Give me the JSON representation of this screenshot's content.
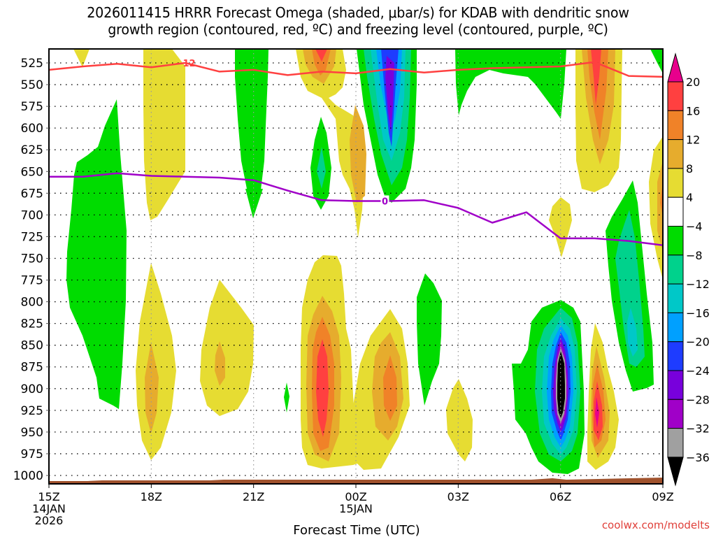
{
  "chart_data": {
    "type": "heatmap",
    "title_lines": [
      "2026011415 HRRR Forecast Omega (shaded, μbar/s) for KDAB with dendritic snow",
      "growth region (contoured, red, ºC) and freezing level (contoured, purple, ºC)"
    ],
    "xlabel": "Forecast Time (UTC)",
    "ylabel": "",
    "credit": "coolwx.com/modelts",
    "x_ticks": [
      {
        "hour": 0,
        "lines": [
          "15Z",
          "14JAN",
          "2026"
        ]
      },
      {
        "hour": 3,
        "lines": [
          "18Z"
        ]
      },
      {
        "hour": 6,
        "lines": [
          "21Z"
        ]
      },
      {
        "hour": 9,
        "lines": [
          "00Z",
          "15JAN"
        ]
      },
      {
        "hour": 12,
        "lines": [
          "03Z"
        ]
      },
      {
        "hour": 15,
        "lines": [
          "06Z"
        ]
      },
      {
        "hour": 18,
        "lines": [
          "09Z"
        ]
      }
    ],
    "xlim_hours": [
      0,
      18
    ],
    "y_ticks": [
      525,
      550,
      575,
      600,
      625,
      650,
      675,
      700,
      725,
      750,
      775,
      800,
      825,
      850,
      875,
      900,
      925,
      950,
      975,
      1000
    ],
    "ylim_hPa": [
      509,
      1012
    ],
    "grid": true,
    "colorbar": {
      "labels": [
        "20",
        "16",
        "12",
        "8",
        "4",
        "−4",
        "−8",
        "−12",
        "−16",
        "−20",
        "−24",
        "−28",
        "−32",
        "−36"
      ],
      "levels": [
        -36,
        -32,
        -28,
        -24,
        -20,
        -16,
        -12,
        -8,
        -4,
        4,
        8,
        12,
        16,
        20
      ],
      "colors": {
        "gt20": "#e8008c",
        "16_20": "#ff4040",
        "12_16": "#f08228",
        "8_12": "#e6ac2d",
        "4_8": "#e6dc32",
        "m4_4": "#ffffff",
        "m8_m4": "#00dc00",
        "m12_m8": "#00d28c",
        "m16_m12": "#00c8c8",
        "m20_m16": "#00a0ff",
        "m24_m20": "#1e3cff",
        "m28_m24": "#7800dc",
        "m32_m28": "#a000c8",
        "m36_m32": "#a0a0a0",
        "lt_m36": "#000000"
      },
      "placement": "right"
    },
    "contours": [
      {
        "name": "dendritic-growth -12C",
        "color": "#ff4040",
        "label": "−12",
        "points": [
          [
            0,
            533
          ],
          [
            1,
            529
          ],
          [
            2,
            526
          ],
          [
            3,
            530
          ],
          [
            4,
            525
          ],
          [
            5,
            535
          ],
          [
            6,
            533
          ],
          [
            7,
            539
          ],
          [
            8,
            535
          ],
          [
            9,
            537
          ],
          [
            10,
            532
          ],
          [
            11,
            536
          ],
          [
            12,
            533
          ],
          [
            13,
            531
          ],
          [
            14,
            530
          ],
          [
            15,
            529
          ],
          [
            16,
            524
          ],
          [
            17,
            540
          ],
          [
            18,
            541
          ]
        ]
      },
      {
        "name": "freezing-level 0C",
        "color": "#a000c8",
        "label": "0",
        "points": [
          [
            0,
            656
          ],
          [
            1,
            656
          ],
          [
            2,
            652
          ],
          [
            3,
            655
          ],
          [
            4,
            656
          ],
          [
            5,
            657
          ],
          [
            6,
            660
          ],
          [
            7,
            672
          ],
          [
            8,
            683
          ],
          [
            9,
            684
          ],
          [
            10,
            684
          ],
          [
            11,
            683
          ],
          [
            12,
            692
          ],
          [
            13,
            709
          ],
          [
            14,
            697
          ],
          [
            15,
            727
          ],
          [
            16,
            727
          ],
          [
            17,
            730
          ],
          [
            18,
            735
          ]
        ]
      }
    ],
    "surface_color": "#a0522d"
  }
}
